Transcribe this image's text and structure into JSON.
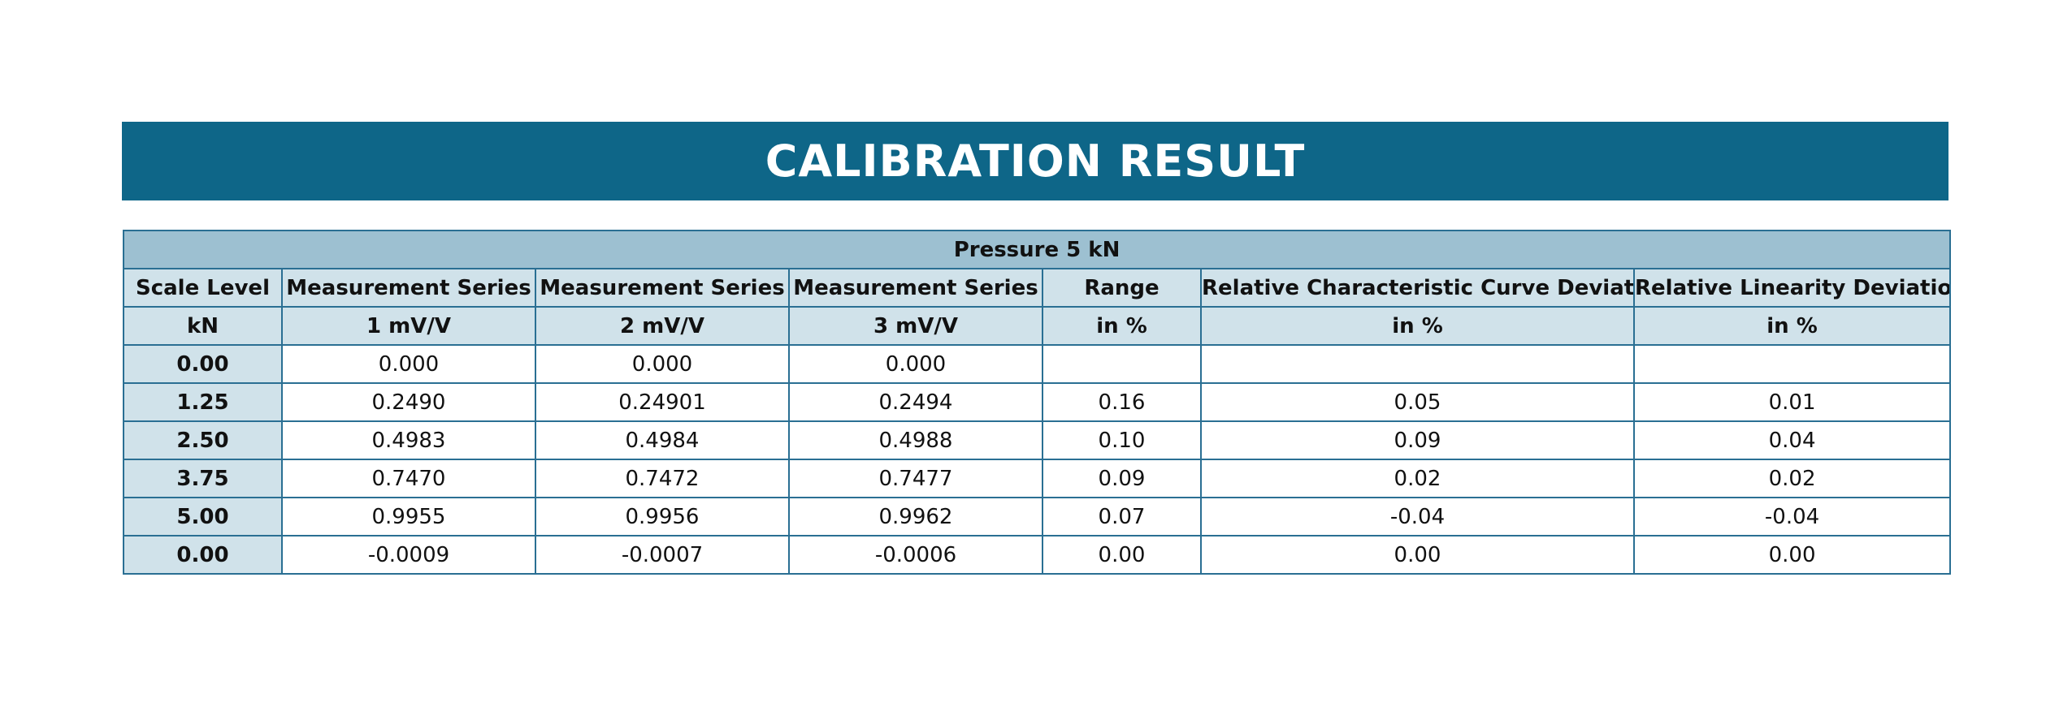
{
  "title": "CALIBRATION RESULT",
  "table": {
    "caption": "Pressure 5 kN",
    "header": [
      [
        "Scale Level",
        "Measurement Series",
        "Measurement Series",
        "Measurement Series",
        "Range",
        "Relative Characteristic Curve Deviation",
        "Relative Linearity Deviation"
      ],
      [
        "kN",
        "1 mV/V",
        "2 mV/V",
        "3 mV/V",
        "in %",
        "in %",
        "in %"
      ]
    ],
    "rows": [
      [
        "0.00",
        "0.000",
        "0.000",
        "0.000"
      ],
      [
        "1.25",
        "0.2490",
        "0.24901",
        "0.2494",
        "0.16",
        "0.05",
        "0.01"
      ],
      [
        "2.50",
        "0.4983",
        "0.4984",
        "0.4988",
        "0.10",
        "0.09",
        "0.04"
      ],
      [
        "3.75",
        "0.7470",
        "0.7472",
        "0.7477",
        "0.09",
        "0.02",
        "0.02"
      ],
      [
        "5.00",
        "0.9955",
        "0.9956",
        "0.9962",
        "0.07",
        "-0.04",
        "-0.04"
      ],
      [
        "0.00",
        "-0.0009",
        "-0.0007",
        "-0.0006",
        "0.00",
        "0.00",
        "0.00"
      ]
    ]
  }
}
